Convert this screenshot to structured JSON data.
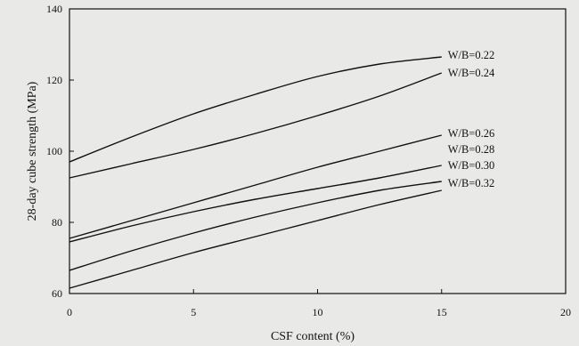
{
  "chart_data": {
    "type": "line",
    "xlabel": "CSF content (%)",
    "ylabel": "28-day cube strength (MPa)",
    "xlim": [
      0,
      20
    ],
    "ylim": [
      60,
      140
    ],
    "xticks": [
      0,
      5,
      10,
      15,
      20
    ],
    "yticks": [
      60,
      80,
      100,
      120,
      140
    ],
    "grid": false,
    "legend": "inline labels at line ends (right)",
    "line_color": "#111111",
    "series": [
      {
        "name": "W/B=0.22",
        "x": [
          0,
          2.5,
          5,
          7.5,
          10,
          12.5,
          15
        ],
        "y": [
          97,
          104,
          110.5,
          116,
          121,
          124.5,
          126.5
        ]
      },
      {
        "name": "W/B=0.24",
        "x": [
          0,
          2.5,
          5,
          7.5,
          10,
          12.5,
          15
        ],
        "y": [
          92.5,
          96.5,
          100.5,
          105,
          110,
          115.5,
          122
        ]
      },
      {
        "name": "W/B=0.26",
        "x": [
          0,
          2.5,
          5,
          7.5,
          10,
          12.5,
          15
        ],
        "y": [
          75.5,
          80.5,
          85.5,
          90.5,
          95.5,
          100,
          104.5
        ]
      },
      {
        "name": "W/B=0.28",
        "x": [
          0,
          2.5,
          5,
          7.5,
          10,
          12.5,
          15
        ],
        "y": [
          74.5,
          79,
          83,
          86.5,
          89.5,
          92.5,
          96
        ]
      },
      {
        "name": "W/B=0.30",
        "x": [
          0,
          2.5,
          5,
          7.5,
          10,
          12.5,
          15
        ],
        "y": [
          66.5,
          72,
          77,
          81.5,
          85.5,
          89,
          91.5
        ]
      },
      {
        "name": "W/B=0.32",
        "x": [
          0,
          2.5,
          5,
          7.5,
          10,
          12.5,
          15
        ],
        "y": [
          61.5,
          66.5,
          71.5,
          76,
          80.5,
          85,
          89
        ]
      }
    ]
  }
}
